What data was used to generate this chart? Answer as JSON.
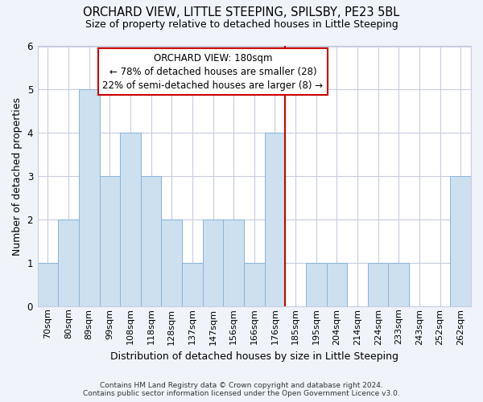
{
  "title1": "ORCHARD VIEW, LITTLE STEEPING, SPILSBY, PE23 5BL",
  "title2": "Size of property relative to detached houses in Little Steeping",
  "xlabel": "Distribution of detached houses by size in Little Steeping",
  "ylabel": "Number of detached properties",
  "categories": [
    "70sqm",
    "80sqm",
    "89sqm",
    "99sqm",
    "108sqm",
    "118sqm",
    "128sqm",
    "137sqm",
    "147sqm",
    "156sqm",
    "166sqm",
    "176sqm",
    "185sqm",
    "195sqm",
    "204sqm",
    "214sqm",
    "224sqm",
    "233sqm",
    "243sqm",
    "252sqm",
    "262sqm"
  ],
  "values": [
    1,
    2,
    5,
    3,
    4,
    3,
    2,
    1,
    2,
    2,
    1,
    4,
    0,
    1,
    1,
    0,
    1,
    1,
    0,
    0,
    3
  ],
  "bar_color": "#cce0f0",
  "bar_edge_color": "#8ab4d8",
  "highlight_index": 11,
  "highlight_line_color": "#cc0000",
  "annotation_line1": "ORCHARD VIEW: 180sqm",
  "annotation_line2": "← 78% of detached houses are smaller (28)",
  "annotation_line3": "22% of semi-detached houses are larger (8) →",
  "annotation_box_color": "#cc0000",
  "ylim": [
    0,
    6
  ],
  "yticks": [
    0,
    1,
    2,
    3,
    4,
    5,
    6
  ],
  "footnote1": "Contains HM Land Registry data © Crown copyright and database right 2024.",
  "footnote2": "Contains public sector information licensed under the Open Government Licence v3.0.",
  "background_color": "#f0f4fa",
  "plot_bg_color": "#ffffff",
  "grid_color": "#c8cce0",
  "title1_fontsize": 10.5,
  "title2_fontsize": 9,
  "ylabel_fontsize": 9,
  "xlabel_fontsize": 9,
  "tick_fontsize": 8,
  "annot_fontsize": 8.5,
  "footnote_fontsize": 6.5
}
